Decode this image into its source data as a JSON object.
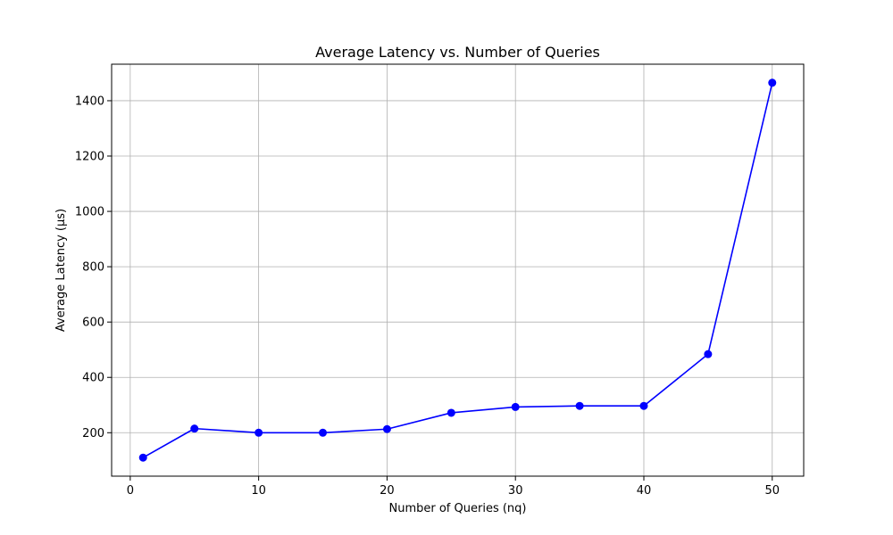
{
  "chart_data": {
    "type": "line",
    "title": "Average Latency vs. Number of Queries",
    "xlabel": "Number of Queries (nq)",
    "ylabel": "Average Latency (µs)",
    "x": [
      1,
      5,
      10,
      15,
      20,
      25,
      30,
      35,
      40,
      45,
      50
    ],
    "series": [
      {
        "values": [
          110,
          215,
          200,
          200,
          213,
          272,
          293,
          297,
          297,
          484,
          1465
        ],
        "color": "#0000ff",
        "marker": "circle"
      }
    ],
    "xlim": [
      -1.45,
      52.45
    ],
    "ylim": [
      43,
      1532
    ],
    "xticks": [
      0,
      10,
      20,
      30,
      40,
      50
    ],
    "yticks": [
      200,
      400,
      600,
      800,
      1000,
      1200,
      1400
    ],
    "grid": true
  }
}
